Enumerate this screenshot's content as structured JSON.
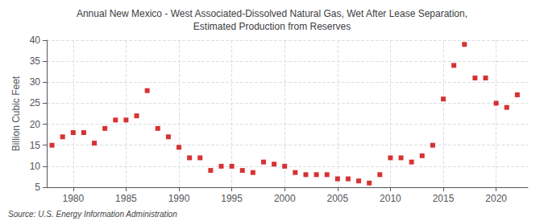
{
  "chart_data": {
    "type": "scatter",
    "title": "Annual New Mexico - West Associated-Dissolved Natural Gas, Wet After Lease Separation,\nEstimated Production from Reserves",
    "ylabel": "Billion Cubic Feet",
    "source": "Source: U.S. Energy Information Administration",
    "x": [
      1978,
      1979,
      1980,
      1981,
      1982,
      1983,
      1984,
      1985,
      1986,
      1987,
      1988,
      1989,
      1990,
      1991,
      1992,
      1993,
      1994,
      1995,
      1996,
      1997,
      1998,
      1999,
      2000,
      2001,
      2002,
      2003,
      2004,
      2005,
      2006,
      2007,
      2008,
      2009,
      2010,
      2011,
      2012,
      2013,
      2014,
      2015,
      2016,
      2017,
      2018,
      2019,
      2020,
      2021,
      2022
    ],
    "values": [
      15.0,
      17.0,
      18.0,
      18.0,
      15.5,
      19.0,
      21.0,
      21.0,
      22.0,
      28.0,
      19.0,
      17.0,
      14.5,
      12.0,
      12.0,
      9.0,
      10.0,
      10.0,
      9.0,
      8.5,
      11.0,
      10.5,
      10.0,
      8.5,
      8.0,
      8.0,
      8.0,
      7.0,
      7.0,
      6.5,
      6.0,
      8.0,
      12.0,
      12.0,
      11.0,
      12.5,
      15.0,
      26.0,
      34.0,
      39.0,
      31.0,
      31.0,
      25.0,
      24.0,
      27.0
    ],
    "color": "#cc0000",
    "marker": "square",
    "xlim": [
      1977.5,
      2023
    ],
    "xticks": [
      1980,
      1985,
      1990,
      1995,
      2000,
      2005,
      2010,
      2015,
      2020
    ],
    "ylim": [
      5,
      40
    ],
    "yticks": [
      5,
      10,
      15,
      20,
      25,
      30,
      35,
      40
    ],
    "grid": true
  }
}
